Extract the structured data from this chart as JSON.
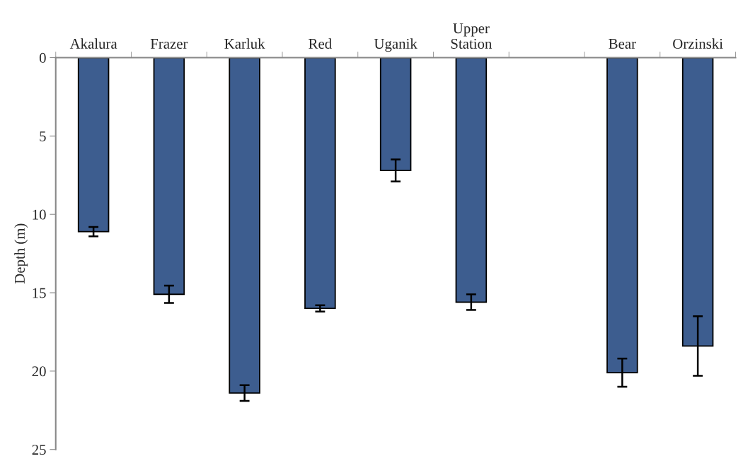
{
  "chart_data": {
    "type": "bar",
    "ylabel": "Depth (m)",
    "categories": [
      "Akalura",
      "Frazer",
      "Karluk",
      "Red",
      "Uganik",
      "Upper\nStation",
      null,
      "Bear",
      "Orzinski"
    ],
    "values": [
      11.1,
      15.1,
      21.4,
      16.0,
      7.2,
      15.6,
      null,
      20.1,
      18.4
    ],
    "errors": [
      0.3,
      0.55,
      0.5,
      0.2,
      0.7,
      0.5,
      null,
      0.9,
      1.9
    ],
    "color": "#3d5d8f",
    "ylim": [
      25,
      0
    ],
    "yticks": [
      0,
      5,
      10,
      15,
      20,
      25
    ],
    "grid": false
  }
}
